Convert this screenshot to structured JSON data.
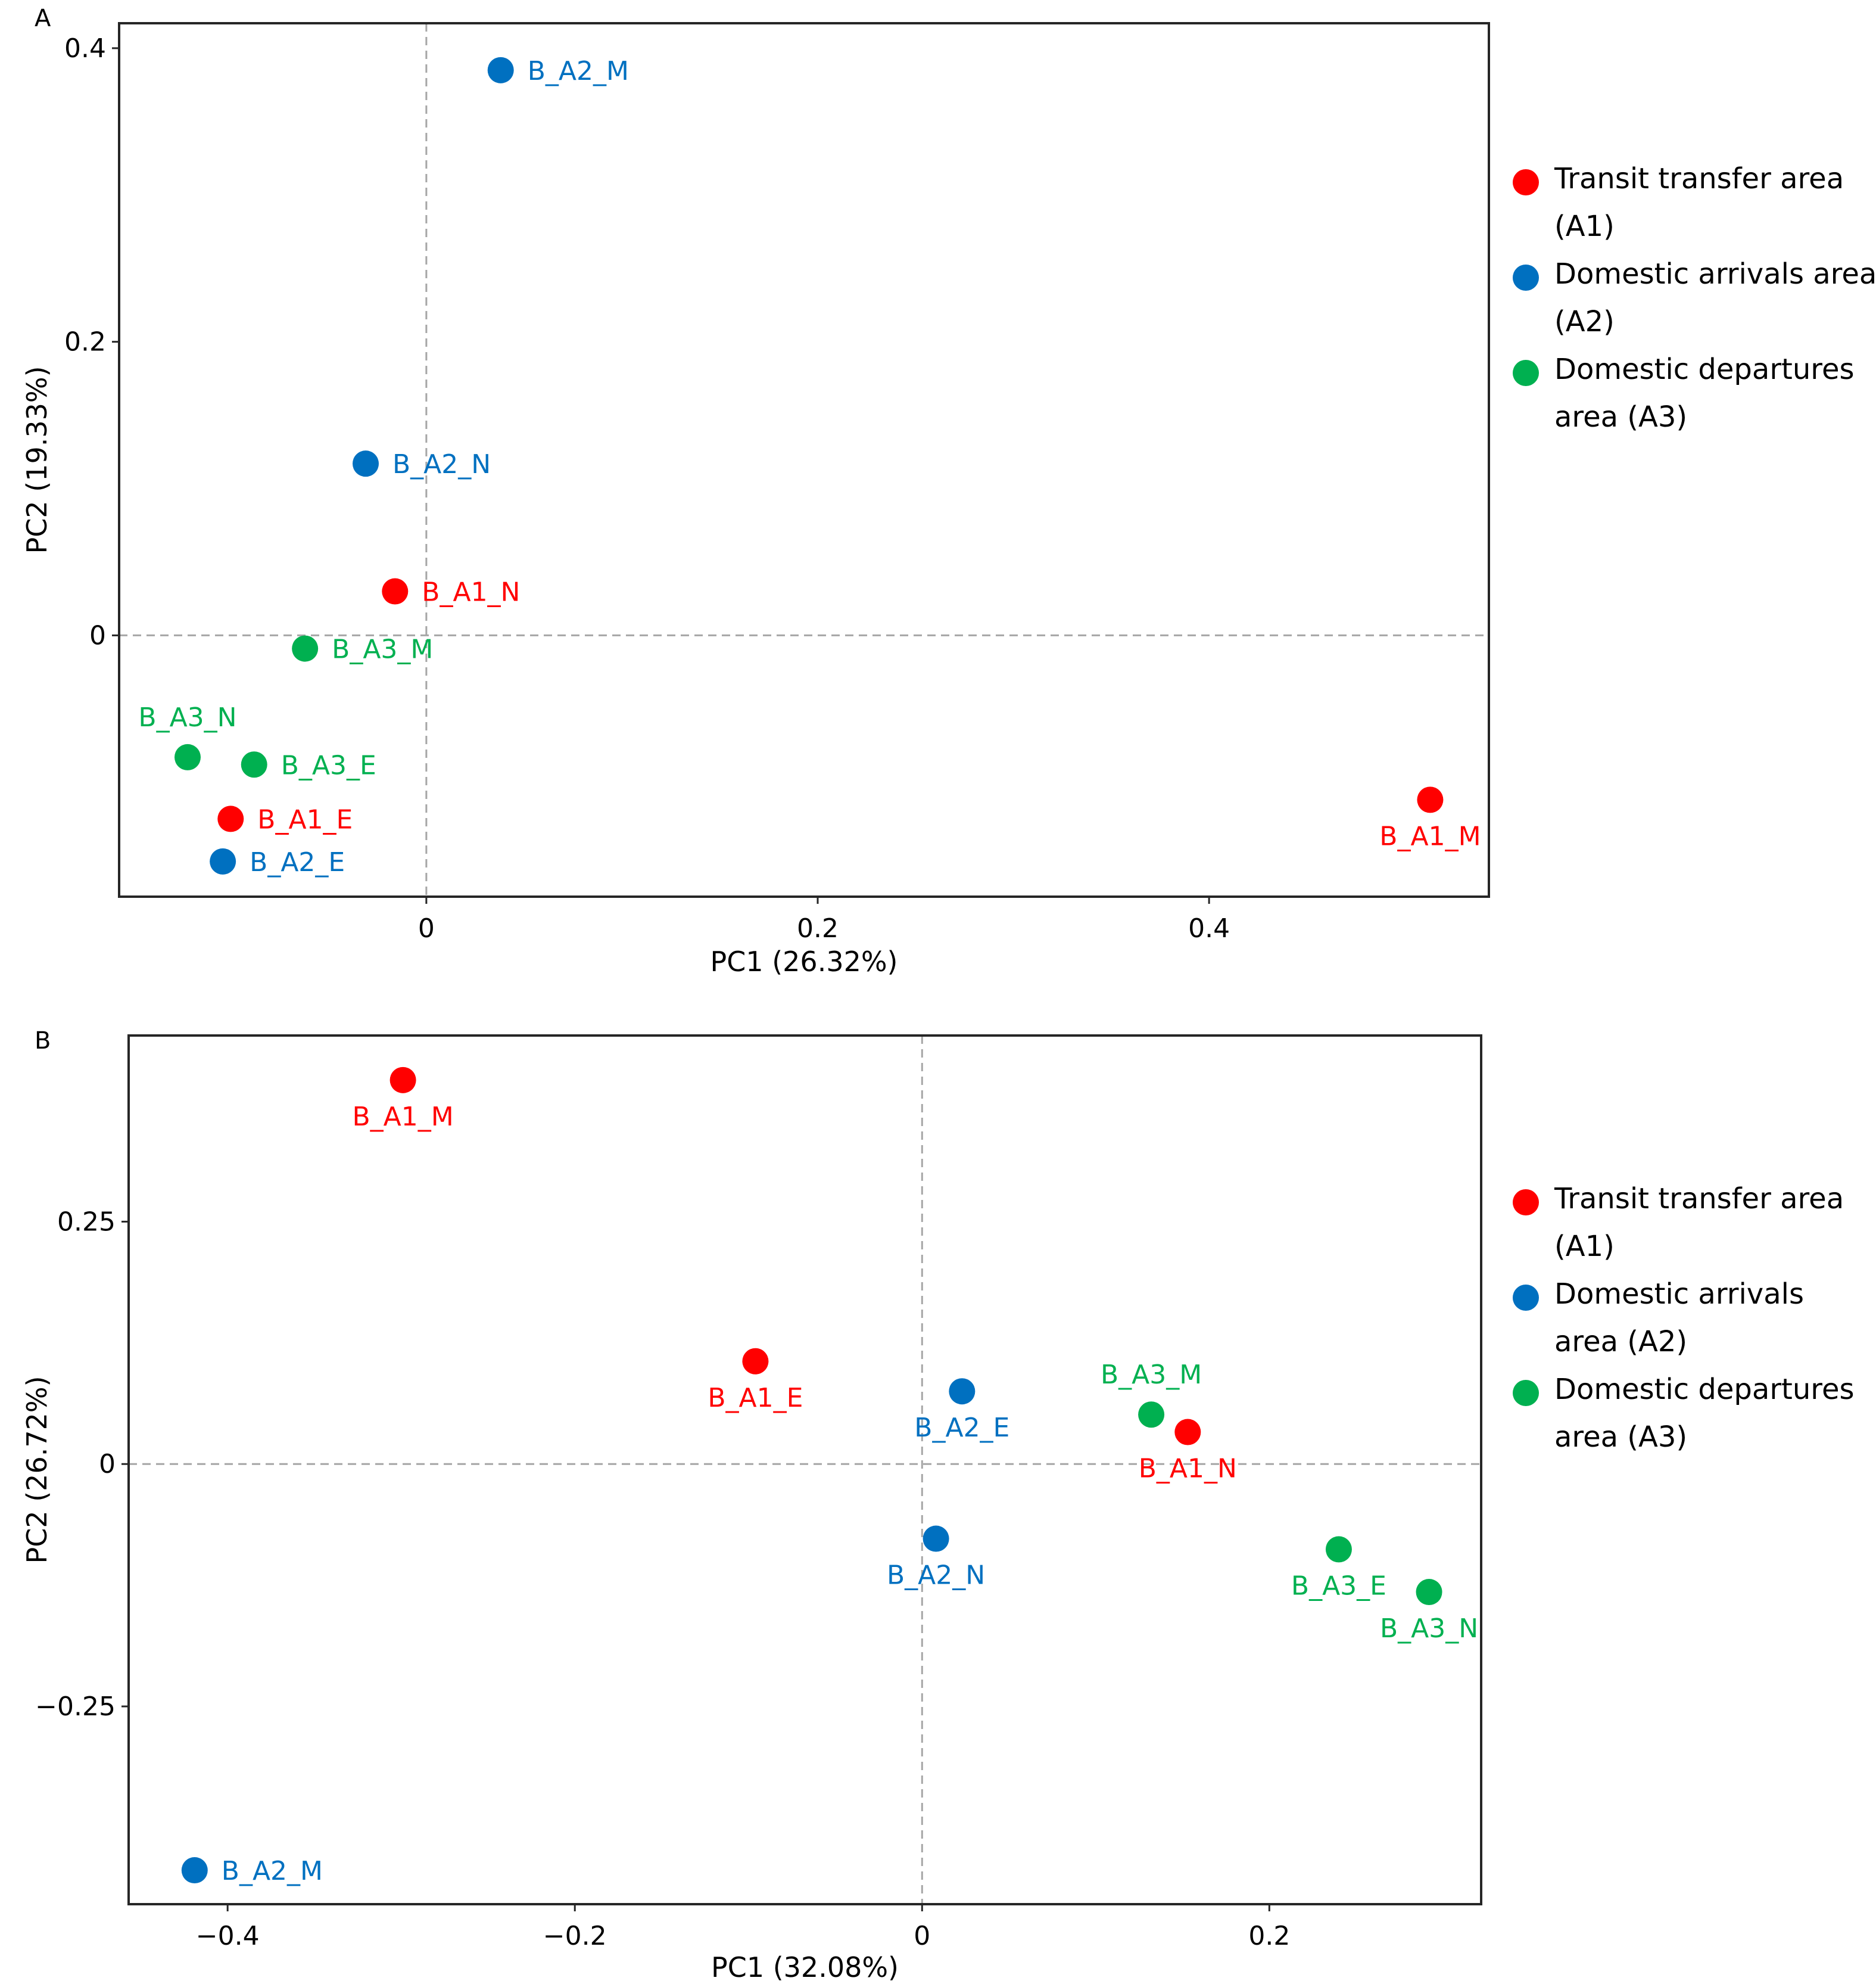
{
  "chart_data": [
    {
      "panel": "A",
      "type": "scatter",
      "xlabel": "PC1 (26.32%)",
      "ylabel": "PC2 (19.33%)",
      "xlim": [
        -0.157,
        0.543
      ],
      "ylim": [
        -0.178,
        0.417
      ],
      "xticks": [
        {
          "value": 0,
          "label": "0"
        },
        {
          "value": 0.2,
          "label": "0.2"
        },
        {
          "value": 0.4,
          "label": "0.4"
        }
      ],
      "yticks": [
        {
          "value": 0,
          "label": "0"
        },
        {
          "value": 0.2,
          "label": "0.2"
        },
        {
          "value": 0.4,
          "label": "0.4"
        }
      ],
      "reference_lines": {
        "x": 0,
        "y": 0,
        "style": "dashed"
      },
      "grid": false,
      "legend_position": "right",
      "legend": [
        {
          "lines": [
            "Transit transfer area",
            "(A1)"
          ],
          "color": "#ff0000"
        },
        {
          "lines": [
            "Domestic arrivals area",
            "(A2)"
          ],
          "color": "#0070c0"
        },
        {
          "lines": [
            "Domestic departures",
            "area (A3)"
          ],
          "color": "#00b050"
        }
      ],
      "points": [
        {
          "label": "B_A2_M",
          "group": "A2",
          "x": 0.038,
          "y": 0.385,
          "label_pos": "right"
        },
        {
          "label": "B_A2_N",
          "group": "A2",
          "x": -0.031,
          "y": 0.117,
          "label_pos": "right"
        },
        {
          "label": "B_A1_N",
          "group": "A1",
          "x": -0.016,
          "y": 0.03,
          "label_pos": "right"
        },
        {
          "label": "B_A3_M",
          "group": "A3",
          "x": -0.062,
          "y": -0.009,
          "label_pos": "right"
        },
        {
          "label": "B_A3_N",
          "group": "A3",
          "x": -0.122,
          "y": -0.083,
          "label_pos": "above"
        },
        {
          "label": "B_A3_E",
          "group": "A3",
          "x": -0.088,
          "y": -0.088,
          "label_pos": "right"
        },
        {
          "label": "B_A1_E",
          "group": "A1",
          "x": -0.1,
          "y": -0.125,
          "label_pos": "right"
        },
        {
          "label": "B_A2_E",
          "group": "A2",
          "x": -0.104,
          "y": -0.154,
          "label_pos": "right"
        },
        {
          "label": "B_A1_M",
          "group": "A1",
          "x": 0.513,
          "y": -0.112,
          "label_pos": "below"
        }
      ]
    },
    {
      "panel": "B",
      "type": "scatter",
      "xlabel": "PC1 (32.08%)",
      "ylabel": "PC2 (26.72%)",
      "xlim": [
        -0.457,
        0.322
      ],
      "ylim": [
        -0.454,
        0.442
      ],
      "xticks": [
        {
          "value": -0.4,
          "label": "−0.4"
        },
        {
          "value": -0.2,
          "label": "−0.2"
        },
        {
          "value": 0,
          "label": "0"
        },
        {
          "value": 0.2,
          "label": "0.2"
        }
      ],
      "yticks": [
        {
          "value": 0.25,
          "label": "0.25"
        },
        {
          "value": 0,
          "label": "0"
        },
        {
          "value": -0.25,
          "label": "−0.25"
        }
      ],
      "reference_lines": {
        "x": 0,
        "y": 0,
        "style": "dashed"
      },
      "grid": false,
      "legend_position": "right",
      "legend": [
        {
          "lines": [
            "Transit transfer area",
            "(A1)"
          ],
          "color": "#ff0000"
        },
        {
          "lines": [
            "Domestic arrivals",
            "area (A2)"
          ],
          "color": "#0070c0"
        },
        {
          "lines": [
            "Domestic departures",
            "area (A3)"
          ],
          "color": "#00b050"
        }
      ],
      "points": [
        {
          "label": "B_A1_M",
          "group": "A1",
          "x": -0.299,
          "y": 0.396,
          "label_pos": "below"
        },
        {
          "label": "B_A1_E",
          "group": "A1",
          "x": -0.096,
          "y": 0.106,
          "label_pos": "below"
        },
        {
          "label": "B_A2_E",
          "group": "A2",
          "x": 0.023,
          "y": 0.075,
          "label_pos": "below"
        },
        {
          "label": "B_A3_M",
          "group": "A3",
          "x": 0.132,
          "y": 0.051,
          "label_pos": "above"
        },
        {
          "label": "B_A1_N",
          "group": "A1",
          "x": 0.153,
          "y": 0.033,
          "label_pos": "below"
        },
        {
          "label": "B_A2_N",
          "group": "A2",
          "x": 0.008,
          "y": -0.077,
          "label_pos": "below"
        },
        {
          "label": "B_A3_E",
          "group": "A3",
          "x": 0.24,
          "y": -0.088,
          "label_pos": "below"
        },
        {
          "label": "B_A3_N",
          "group": "A3",
          "x": 0.292,
          "y": -0.132,
          "label_pos": "below"
        },
        {
          "label": "B_A2_M",
          "group": "A2",
          "x": -0.419,
          "y": -0.419,
          "label_pos": "right"
        }
      ]
    }
  ],
  "group_colors": {
    "A1": "#ff0000",
    "A2": "#0070c0",
    "A3": "#00b050"
  }
}
